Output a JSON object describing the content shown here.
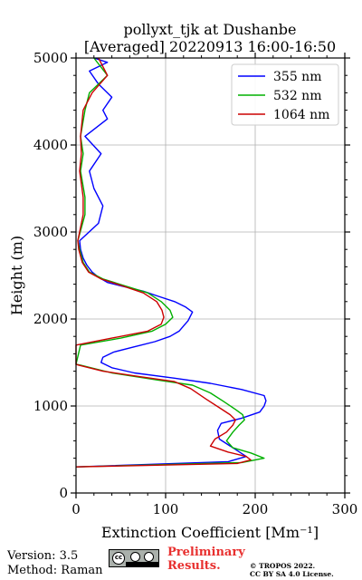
{
  "chart_data": {
    "type": "line",
    "title": "pollyxt_tjk at Dushanbe",
    "subtitle": "[Averaged] 20220913 16:00-16:50",
    "xlabel": "Extinction Coefficient [Mm⁻¹]",
    "ylabel": "Height (m)",
    "xlim": [
      0,
      300
    ],
    "ylim": [
      0,
      5000
    ],
    "x_ticks": [
      "0",
      "100",
      "200",
      "300"
    ],
    "y_ticks": [
      "0",
      "1000",
      "2000",
      "3000",
      "4000",
      "5000"
    ],
    "grid": true,
    "legend_position": "top-right",
    "series": [
      {
        "name": "355 nm",
        "color": "#0000ff",
        "points": [
          [
            0,
            300
          ],
          [
            170,
            360
          ],
          [
            190,
            420
          ],
          [
            175,
            520
          ],
          [
            160,
            620
          ],
          [
            158,
            720
          ],
          [
            162,
            800
          ],
          [
            185,
            860
          ],
          [
            205,
            930
          ],
          [
            210,
            1000
          ],
          [
            212,
            1060
          ],
          [
            210,
            1120
          ],
          [
            185,
            1190
          ],
          [
            150,
            1260
          ],
          [
            110,
            1320
          ],
          [
            65,
            1380
          ],
          [
            40,
            1440
          ],
          [
            28,
            1500
          ],
          [
            30,
            1560
          ],
          [
            42,
            1620
          ],
          [
            65,
            1680
          ],
          [
            88,
            1740
          ],
          [
            105,
            1800
          ],
          [
            115,
            1860
          ],
          [
            120,
            1920
          ],
          [
            125,
            1980
          ],
          [
            128,
            2040
          ],
          [
            130,
            2080
          ],
          [
            122,
            2140
          ],
          [
            110,
            2200
          ],
          [
            92,
            2260
          ],
          [
            75,
            2320
          ],
          [
            50,
            2380
          ],
          [
            35,
            2420
          ],
          [
            25,
            2480
          ],
          [
            18,
            2540
          ],
          [
            12,
            2620
          ],
          [
            8,
            2700
          ],
          [
            5,
            2800
          ],
          [
            4,
            2900
          ],
          [
            25,
            3100
          ],
          [
            30,
            3300
          ],
          [
            20,
            3500
          ],
          [
            15,
            3700
          ],
          [
            28,
            3900
          ],
          [
            10,
            4100
          ],
          [
            35,
            4300
          ],
          [
            30,
            4400
          ],
          [
            40,
            4550
          ],
          [
            25,
            4700
          ],
          [
            15,
            4850
          ],
          [
            35,
            4950
          ],
          [
            20,
            5000
          ]
        ]
      },
      {
        "name": "532 nm",
        "color": "#00b000",
        "points": [
          [
            0,
            300
          ],
          [
            185,
            350
          ],
          [
            210,
            400
          ],
          [
            195,
            460
          ],
          [
            175,
            520
          ],
          [
            168,
            600
          ],
          [
            175,
            700
          ],
          [
            182,
            780
          ],
          [
            188,
            840
          ],
          [
            186,
            900
          ],
          [
            178,
            960
          ],
          [
            165,
            1050
          ],
          [
            150,
            1150
          ],
          [
            130,
            1240
          ],
          [
            90,
            1300
          ],
          [
            40,
            1380
          ],
          [
            5,
            1470
          ],
          [
            0,
            1480
          ],
          [
            5,
            1700
          ],
          [
            50,
            1780
          ],
          [
            85,
            1860
          ],
          [
            100,
            1940
          ],
          [
            108,
            2020
          ],
          [
            105,
            2100
          ],
          [
            95,
            2200
          ],
          [
            80,
            2300
          ],
          [
            55,
            2380
          ],
          [
            30,
            2460
          ],
          [
            15,
            2540
          ],
          [
            8,
            2650
          ],
          [
            4,
            2800
          ],
          [
            2,
            2900
          ],
          [
            10,
            3200
          ],
          [
            10,
            3400
          ],
          [
            5,
            3700
          ],
          [
            8,
            3900
          ],
          [
            5,
            4100
          ],
          [
            10,
            4400
          ],
          [
            15,
            4600
          ],
          [
            35,
            4800
          ],
          [
            20,
            5000
          ]
        ]
      },
      {
        "name": "1064 nm",
        "color": "#cc0000",
        "points": [
          [
            0,
            300
          ],
          [
            180,
            340
          ],
          [
            195,
            380
          ],
          [
            190,
            420
          ],
          [
            170,
            470
          ],
          [
            150,
            540
          ],
          [
            155,
            620
          ],
          [
            168,
            700
          ],
          [
            175,
            780
          ],
          [
            178,
            840
          ],
          [
            172,
            900
          ],
          [
            160,
            980
          ],
          [
            145,
            1080
          ],
          [
            128,
            1200
          ],
          [
            110,
            1280
          ],
          [
            70,
            1340
          ],
          [
            30,
            1400
          ],
          [
            3,
            1470
          ],
          [
            0,
            1480
          ],
          [
            0,
            1700
          ],
          [
            40,
            1780
          ],
          [
            80,
            1860
          ],
          [
            95,
            1940
          ],
          [
            98,
            2020
          ],
          [
            96,
            2100
          ],
          [
            90,
            2200
          ],
          [
            75,
            2300
          ],
          [
            52,
            2380
          ],
          [
            28,
            2460
          ],
          [
            14,
            2540
          ],
          [
            7,
            2650
          ],
          [
            3,
            2800
          ],
          [
            2,
            2900
          ],
          [
            8,
            3200
          ],
          [
            8,
            3400
          ],
          [
            4,
            3700
          ],
          [
            6,
            3900
          ],
          [
            5,
            4100
          ],
          [
            8,
            4400
          ],
          [
            18,
            4600
          ],
          [
            35,
            4800
          ],
          [
            25,
            5000
          ]
        ]
      }
    ]
  },
  "footer": {
    "version": "Version: 3.5",
    "method": "Method: Raman",
    "license_badge": "cc by sa",
    "preliminary_line1": "Preliminary",
    "preliminary_line2": "Results.",
    "copyright_line1": "© TROPOS 2022.",
    "copyright_line2": "CC BY SA 4.0 License."
  }
}
